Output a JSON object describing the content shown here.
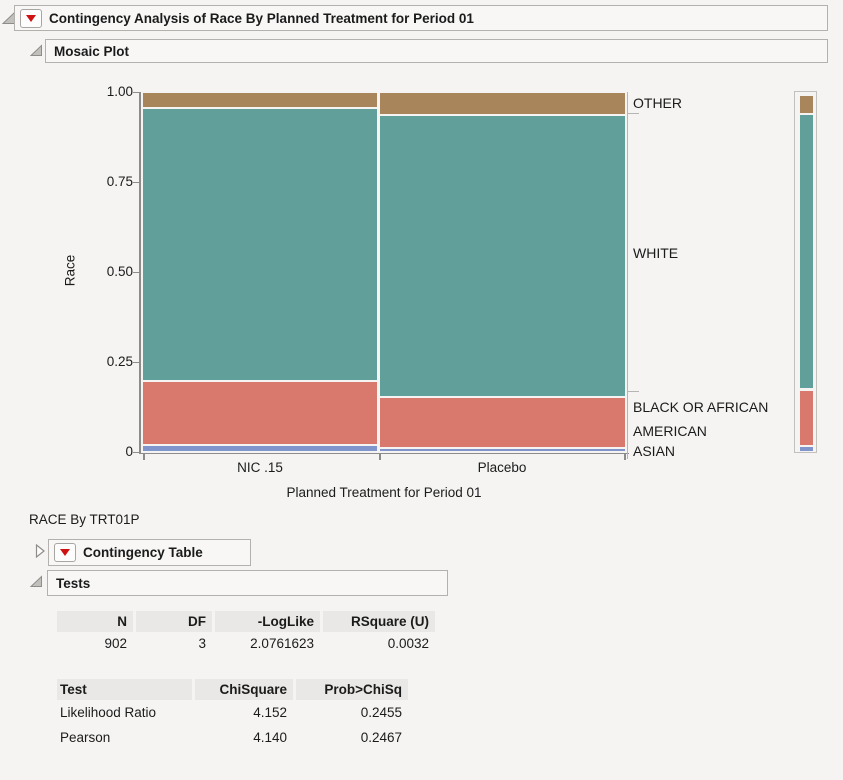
{
  "title_bar": {
    "label": "Contingency Analysis of Race By Planned Treatment for Period 01"
  },
  "sections": {
    "mosaic": {
      "label": "Mosaic Plot"
    },
    "contingency": {
      "label": "Contingency Table"
    },
    "tests": {
      "label": "Tests"
    }
  },
  "subtitle": "RACE By TRT01P",
  "chart_data": {
    "type": "mosaic",
    "title": "Mosaic Plot",
    "xlabel": "Planned Treatment for Period 01",
    "ylabel": "Race",
    "y_ticks": [
      "1.00",
      "0.75",
      "0.50",
      "0.25",
      "0"
    ],
    "ylim": [
      0,
      1
    ],
    "categories": [
      "NIC .15",
      "Placebo"
    ],
    "column_share": [
      0.496,
      0.504
    ],
    "segments_order_bottom_to_top": [
      "ASIAN",
      "BLACK OR AFRICAN AMERICAN",
      "WHITE",
      "OTHER"
    ],
    "series": [
      {
        "name": "NIC .15",
        "values": {
          "ASIAN": 0.019,
          "BLACK OR AFRICAN AMERICAN": 0.178,
          "WHITE": 0.758,
          "OTHER": 0.045
        }
      },
      {
        "name": "Placebo",
        "values": {
          "ASIAN": 0.012,
          "BLACK OR AFRICAN AMERICAN": 0.141,
          "WHITE": 0.783,
          "OTHER": 0.064
        }
      }
    ],
    "overall": {
      "ASIAN": 0.016,
      "BLACK OR AFRICAN AMERICAN": 0.159,
      "WHITE": 0.771,
      "OTHER": 0.054
    },
    "colors": {
      "ASIAN": "#8095cb",
      "BLACK OR AFRICAN AMERICAN": "#d9796e",
      "WHITE": "#61a09a",
      "OTHER": "#a9855c"
    },
    "right_labels": [
      "OTHER",
      "WHITE",
      "BLACK OR AFRICAN",
      "AMERICAN",
      "ASIAN"
    ],
    "legend_position": "right"
  },
  "tests_tables": {
    "summary": {
      "headers": [
        "N",
        "DF",
        "-LogLike",
        "RSquare (U)"
      ],
      "rows": [
        [
          "902",
          "3",
          "2.0761623",
          "0.0032"
        ]
      ]
    },
    "tests": {
      "headers": [
        "Test",
        "ChiSquare",
        "Prob>ChiSq"
      ],
      "rows": [
        [
          "Likelihood Ratio",
          "4.152",
          "0.2455"
        ],
        [
          "Pearson",
          "4.140",
          "0.2467"
        ]
      ]
    }
  },
  "accent_colors": {
    "menu_triangle": "#ce1212",
    "header_border": "#b3b1ae"
  }
}
